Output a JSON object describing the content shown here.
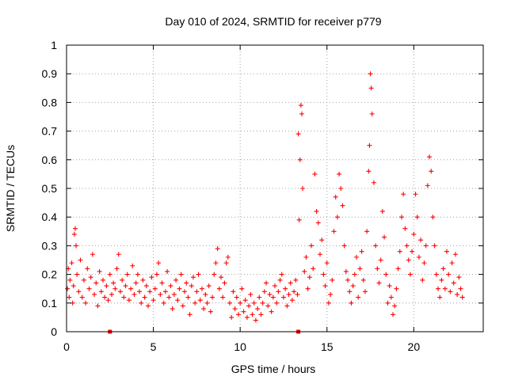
{
  "chart_data": {
    "type": "scatter",
    "title": "Day 010 of 2024, SRMTID for receiver p779",
    "xlabel": "GPS time / hours",
    "ylabel": "SRMTID / TECUs",
    "xlim": [
      0,
      24
    ],
    "ylim": [
      0,
      1
    ],
    "xticks": [
      0,
      5,
      10,
      15,
      20
    ],
    "xtick_labels": [
      "0",
      "5",
      "10",
      "15",
      "20"
    ],
    "yticks": [
      0,
      0.1,
      0.2,
      0.3,
      0.4,
      0.5,
      0.6,
      0.7,
      0.8,
      0.9,
      1
    ],
    "ytick_labels": [
      "0",
      "0.1",
      "0.2",
      "0.3",
      "0.4",
      "0.5",
      "0.6",
      "0.7",
      "0.8",
      "0.9",
      "1"
    ],
    "grid": true,
    "marker": "plus",
    "color": "#ff0000",
    "series": [
      {
        "name": "SRMTID",
        "points": [
          [
            0.05,
            0.15
          ],
          [
            0.1,
            0.22
          ],
          [
            0.15,
            0.12
          ],
          [
            0.2,
            0.18
          ],
          [
            0.3,
            0.24
          ],
          [
            0.35,
            0.1
          ],
          [
            0.4,
            0.16
          ],
          [
            0.45,
            0.34
          ],
          [
            0.5,
            0.36
          ],
          [
            0.55,
            0.3
          ],
          [
            0.6,
            0.2
          ],
          [
            0.7,
            0.14
          ],
          [
            0.8,
            0.25
          ],
          [
            0.9,
            0.12
          ],
          [
            1.0,
            0.18
          ],
          [
            1.1,
            0.1
          ],
          [
            1.2,
            0.22
          ],
          [
            1.3,
            0.15
          ],
          [
            1.4,
            0.19
          ],
          [
            1.5,
            0.27
          ],
          [
            1.6,
            0.13
          ],
          [
            1.7,
            0.17
          ],
          [
            1.8,
            0.09
          ],
          [
            1.9,
            0.21
          ],
          [
            2.0,
            0.14
          ],
          [
            2.1,
            0.18
          ],
          [
            2.2,
            0.12
          ],
          [
            2.3,
            0.16
          ],
          [
            2.4,
            0.11
          ],
          [
            2.5,
            0.2
          ],
          [
            2.6,
            0.13
          ],
          [
            2.7,
            0.17
          ],
          [
            2.8,
            0.15
          ],
          [
            2.9,
            0.22
          ],
          [
            3.0,
            0.27
          ],
          [
            3.1,
            0.14
          ],
          [
            3.2,
            0.18
          ],
          [
            3.3,
            0.12
          ],
          [
            3.4,
            0.16
          ],
          [
            3.5,
            0.2
          ],
          [
            3.6,
            0.11
          ],
          [
            3.7,
            0.15
          ],
          [
            3.8,
            0.23
          ],
          [
            3.9,
            0.13
          ],
          [
            4.0,
            0.17
          ],
          [
            4.1,
            0.2
          ],
          [
            4.2,
            0.14
          ],
          [
            4.3,
            0.1
          ],
          [
            4.4,
            0.18
          ],
          [
            4.5,
            0.12
          ],
          [
            4.6,
            0.16
          ],
          [
            4.7,
            0.09
          ],
          [
            4.8,
            0.14
          ],
          [
            4.9,
            0.19
          ],
          [
            5.0,
            0.11
          ],
          [
            5.1,
            0.15
          ],
          [
            5.2,
            0.2
          ],
          [
            5.3,
            0.24
          ],
          [
            5.4,
            0.13
          ],
          [
            5.5,
            0.17
          ],
          [
            5.6,
            0.1
          ],
          [
            5.7,
            0.14
          ],
          [
            5.8,
            0.21
          ],
          [
            5.9,
            0.12
          ],
          [
            6.0,
            0.16
          ],
          [
            6.1,
            0.08
          ],
          [
            6.2,
            0.13
          ],
          [
            6.3,
            0.18
          ],
          [
            6.4,
            0.11
          ],
          [
            6.5,
            0.15
          ],
          [
            6.6,
            0.2
          ],
          [
            6.7,
            0.09
          ],
          [
            6.8,
            0.14
          ],
          [
            6.9,
            0.17
          ],
          [
            7.0,
            0.12
          ],
          [
            7.1,
            0.06
          ],
          [
            7.2,
            0.16
          ],
          [
            7.3,
            0.19
          ],
          [
            7.4,
            0.1
          ],
          [
            7.5,
            0.14
          ],
          [
            7.6,
            0.2
          ],
          [
            7.7,
            0.11
          ],
          [
            7.8,
            0.15
          ],
          [
            7.9,
            0.08
          ],
          [
            8.0,
            0.13
          ],
          [
            8.1,
            0.1
          ],
          [
            8.2,
            0.16
          ],
          [
            8.3,
            0.07
          ],
          [
            8.4,
            0.12
          ],
          [
            8.5,
            0.2
          ],
          [
            8.6,
            0.24
          ],
          [
            8.7,
            0.29
          ],
          [
            8.8,
            0.15
          ],
          [
            8.9,
            0.19
          ],
          [
            9.0,
            0.12
          ],
          [
            9.1,
            0.17
          ],
          [
            9.2,
            0.24
          ],
          [
            9.3,
            0.26
          ],
          [
            9.4,
            0.1
          ],
          [
            9.5,
            0.05
          ],
          [
            9.6,
            0.14
          ],
          [
            9.7,
            0.08
          ],
          [
            9.8,
            0.12
          ],
          [
            9.9,
            0.06
          ],
          [
            10.0,
            0.1
          ],
          [
            10.1,
            0.15
          ],
          [
            10.2,
            0.07
          ],
          [
            10.3,
            0.11
          ],
          [
            10.4,
            0.05
          ],
          [
            10.5,
            0.09
          ],
          [
            10.6,
            0.13
          ],
          [
            10.7,
            0.06
          ],
          [
            10.8,
            0.1
          ],
          [
            10.9,
            0.04
          ],
          [
            11.0,
            0.08
          ],
          [
            11.1,
            0.12
          ],
          [
            11.2,
            0.06
          ],
          [
            11.3,
            0.1
          ],
          [
            11.4,
            0.14
          ],
          [
            11.5,
            0.17
          ],
          [
            11.6,
            0.09
          ],
          [
            11.7,
            0.13
          ],
          [
            11.8,
            0.07
          ],
          [
            11.9,
            0.12
          ],
          [
            12.0,
            0.16
          ],
          [
            12.1,
            0.1
          ],
          [
            12.2,
            0.14
          ],
          [
            12.3,
            0.18
          ],
          [
            12.4,
            0.2
          ],
          [
            12.5,
            0.12
          ],
          [
            12.6,
            0.15
          ],
          [
            12.7,
            0.09
          ],
          [
            12.8,
            0.13
          ],
          [
            12.9,
            0.17
          ],
          [
            13.0,
            0.11
          ],
          [
            13.1,
            0.14
          ],
          [
            13.2,
            0.18
          ],
          [
            13.3,
            0.13
          ],
          [
            13.35,
            0.69
          ],
          [
            13.4,
            0.39
          ],
          [
            13.45,
            0.6
          ],
          [
            13.5,
            0.79
          ],
          [
            13.55,
            0.76
          ],
          [
            13.6,
            0.5
          ],
          [
            13.7,
            0.21
          ],
          [
            13.8,
            0.26
          ],
          [
            13.9,
            0.15
          ],
          [
            14.0,
            0.19
          ],
          [
            14.1,
            0.3
          ],
          [
            14.2,
            0.22
          ],
          [
            14.3,
            0.55
          ],
          [
            14.4,
            0.42
          ],
          [
            14.5,
            0.38
          ],
          [
            14.6,
            0.27
          ],
          [
            14.7,
            0.32
          ],
          [
            14.8,
            0.2
          ],
          [
            14.9,
            0.16
          ],
          [
            15.0,
            0.24
          ],
          [
            15.1,
            0.1
          ],
          [
            15.2,
            0.13
          ],
          [
            15.3,
            0.18
          ],
          [
            15.4,
            0.35
          ],
          [
            15.5,
            0.47
          ],
          [
            15.6,
            0.4
          ],
          [
            15.7,
            0.55
          ],
          [
            15.8,
            0.5
          ],
          [
            15.9,
            0.44
          ],
          [
            16.0,
            0.3
          ],
          [
            16.1,
            0.21
          ],
          [
            16.2,
            0.18
          ],
          [
            16.3,
            0.14
          ],
          [
            16.4,
            0.1
          ],
          [
            16.5,
            0.16
          ],
          [
            16.6,
            0.2
          ],
          [
            16.7,
            0.26
          ],
          [
            16.8,
            0.12
          ],
          [
            16.9,
            0.22
          ],
          [
            17.0,
            0.28
          ],
          [
            17.1,
            0.18
          ],
          [
            17.2,
            0.14
          ],
          [
            17.3,
            0.35
          ],
          [
            17.4,
            0.56
          ],
          [
            17.45,
            0.65
          ],
          [
            17.5,
            0.9
          ],
          [
            17.55,
            0.85
          ],
          [
            17.6,
            0.76
          ],
          [
            17.7,
            0.52
          ],
          [
            17.8,
            0.3
          ],
          [
            17.9,
            0.22
          ],
          [
            18.0,
            0.17
          ],
          [
            18.1,
            0.25
          ],
          [
            18.2,
            0.42
          ],
          [
            18.3,
            0.33
          ],
          [
            18.4,
            0.2
          ],
          [
            18.5,
            0.1
          ],
          [
            18.6,
            0.16
          ],
          [
            18.7,
            0.12
          ],
          [
            18.8,
            0.06
          ],
          [
            18.9,
            0.09
          ],
          [
            19.0,
            0.15
          ],
          [
            19.1,
            0.22
          ],
          [
            19.2,
            0.28
          ],
          [
            19.3,
            0.4
          ],
          [
            19.4,
            0.48
          ],
          [
            19.5,
            0.36
          ],
          [
            19.6,
            0.3
          ],
          [
            19.7,
            0.25
          ],
          [
            19.8,
            0.2
          ],
          [
            19.9,
            0.28
          ],
          [
            20.0,
            0.34
          ],
          [
            20.1,
            0.48
          ],
          [
            20.2,
            0.4
          ],
          [
            20.3,
            0.26
          ],
          [
            20.4,
            0.32
          ],
          [
            20.5,
            0.18
          ],
          [
            20.6,
            0.24
          ],
          [
            20.7,
            0.3
          ],
          [
            20.8,
            0.51
          ],
          [
            20.9,
            0.61
          ],
          [
            21.0,
            0.56
          ],
          [
            21.1,
            0.4
          ],
          [
            21.2,
            0.3
          ],
          [
            21.3,
            0.2
          ],
          [
            21.4,
            0.15
          ],
          [
            21.5,
            0.12
          ],
          [
            21.6,
            0.18
          ],
          [
            21.7,
            0.22
          ],
          [
            21.8,
            0.15
          ],
          [
            21.9,
            0.28
          ],
          [
            22.0,
            0.2
          ],
          [
            22.1,
            0.14
          ],
          [
            22.2,
            0.24
          ],
          [
            22.3,
            0.17
          ],
          [
            22.4,
            0.27
          ],
          [
            22.5,
            0.13
          ],
          [
            22.6,
            0.19
          ],
          [
            22.7,
            0.15
          ],
          [
            22.8,
            0.12
          ]
        ]
      }
    ],
    "zero_markers": [
      2.5,
      13.35
    ]
  }
}
